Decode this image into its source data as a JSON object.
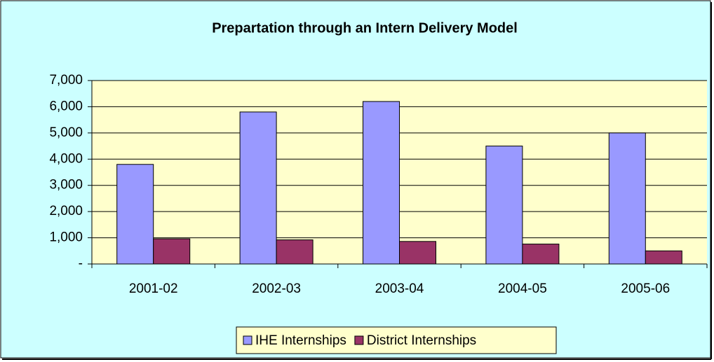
{
  "chart_data": {
    "type": "bar",
    "title": "Prepartation through an Intern Delivery Model",
    "categories": [
      "2001-02",
      "2002-03",
      "2003-04",
      "2004-05",
      "2005-06"
    ],
    "series": [
      {
        "name": "IHE Internships",
        "color": "#9999ff",
        "values": [
          3800,
          5800,
          6200,
          4500,
          5000
        ]
      },
      {
        "name": "District Internships",
        "color": "#993366",
        "values": [
          960,
          920,
          860,
          760,
          500
        ]
      }
    ],
    "ylim": [
      0,
      7000
    ],
    "yticks": [
      {
        "value": 0,
        "label": "-"
      },
      {
        "value": 1000,
        "label": "1,000"
      },
      {
        "value": 2000,
        "label": "2,000"
      },
      {
        "value": 3000,
        "label": "3,000"
      },
      {
        "value": 4000,
        "label": "4,000"
      },
      {
        "value": 5000,
        "label": "5,000"
      },
      {
        "value": 6000,
        "label": "6,000"
      },
      {
        "value": 7000,
        "label": "7,000"
      }
    ],
    "grid": true,
    "legend": "bottom"
  }
}
